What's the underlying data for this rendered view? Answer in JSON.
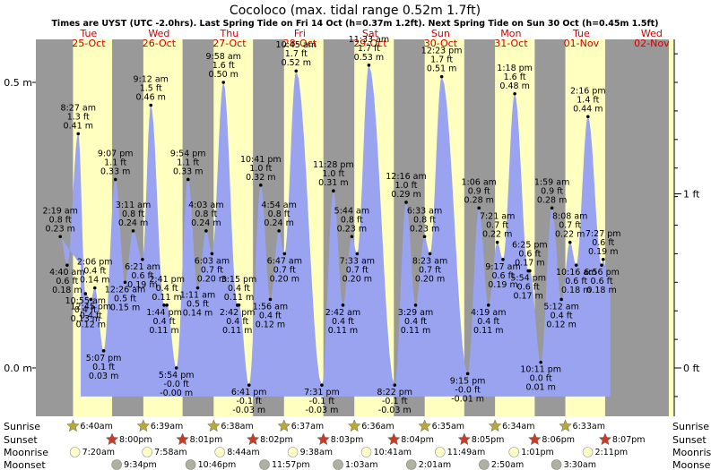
{
  "chart_data": {
    "type": "area",
    "title": "Cocoloco (max. tidal range 0.52m 1.7ft)",
    "subtitle": "Times are UYST (UTC -2.0hrs). Last Spring Tide on Fri 14 Oct (h=0.37m 1.2ft). Next Spring Tide on Sun 30 Oct (h=0.45m 1.5ft)",
    "days": [
      {
        "weekday": "Tue",
        "date": "25-Oct"
      },
      {
        "weekday": "Wed",
        "date": "26-Oct"
      },
      {
        "weekday": "Thu",
        "date": "27-Oct"
      },
      {
        "weekday": "Fri",
        "date": "28-Oct"
      },
      {
        "weekday": "Sat",
        "date": "29-Oct"
      },
      {
        "weekday": "Sun",
        "date": "30-Oct"
      },
      {
        "weekday": "Mon",
        "date": "31-Oct"
      },
      {
        "weekday": "Tue",
        "date": "01-Nov"
      },
      {
        "weekday": "Wed",
        "date": "02-Nov"
      }
    ],
    "y_left_ticks": [
      {
        "value": 0.0,
        "label": "0.0 m"
      },
      {
        "value": 0.5,
        "label": "0.5 m"
      }
    ],
    "y_right_ticks": [
      {
        "value": 0.0,
        "label": "0 ft"
      },
      {
        "value": 0.3048,
        "label": "1 ft"
      }
    ],
    "ylim_m": [
      -0.08,
      0.6
    ],
    "tides": [
      {
        "day": 0,
        "time": "2:19 am",
        "ft": "0.8 ft",
        "m": "0.23 m",
        "h": 0.23
      },
      {
        "day": 0,
        "time": "4:40 am",
        "ft": "0.6 ft",
        "m": "0.18 m",
        "h": 0.18
      },
      {
        "day": 0,
        "time": "8:27 am",
        "ft": "1.3 ft",
        "m": "0.41 m",
        "h": 0.41
      },
      {
        "day": 0,
        "time": "10:55 am",
        "ft": "0.4 ft",
        "m": "0.13 m",
        "h": 0.13
      },
      {
        "day": 0,
        "time": "12:45 pm",
        "ft": "0.4 ft",
        "m": "0.12 m",
        "h": 0.12
      },
      {
        "day": 0,
        "time": "2:06 pm",
        "ft": "0.4 ft",
        "m": "0.14 m",
        "h": 0.14
      },
      {
        "day": 0,
        "time": "5:07 pm",
        "ft": "0.1 ft",
        "m": "0.03 m",
        "h": 0.03
      },
      {
        "day": 0,
        "time": "9:07 pm",
        "ft": "1.1 ft",
        "m": "0.33 m",
        "h": 0.33
      },
      {
        "day": 1,
        "time": "12:26 am",
        "ft": "0.5 ft",
        "m": "0.15 m",
        "h": 0.15
      },
      {
        "day": 1,
        "time": "3:11 am",
        "ft": "0.8 ft",
        "m": "0.24 m",
        "h": 0.24
      },
      {
        "day": 1,
        "time": "6:21 am",
        "ft": "0.6 ft",
        "m": "0.19 m",
        "h": 0.19
      },
      {
        "day": 1,
        "time": "9:12 am",
        "ft": "1.5 ft",
        "m": "0.46 m",
        "h": 0.46
      },
      {
        "day": 1,
        "time": "1:44 pm",
        "ft": "0.4 ft",
        "m": "0.11 m",
        "h": 0.11
      },
      {
        "day": 1,
        "time": "2:41 pm",
        "ft": "0.4 ft",
        "m": "0.11 m",
        "h": 0.11
      },
      {
        "day": 1,
        "time": "5:54 pm",
        "ft": "-0.0 ft",
        "m": "-0.00 m",
        "h": -0.0
      },
      {
        "day": 1,
        "time": "9:54 pm",
        "ft": "1.1 ft",
        "m": "0.33 m",
        "h": 0.33
      },
      {
        "day": 2,
        "time": "1:11 am",
        "ft": "0.5 ft",
        "m": "0.14 m",
        "h": 0.14
      },
      {
        "day": 2,
        "time": "4:03 am",
        "ft": "0.8 ft",
        "m": "0.24 m",
        "h": 0.24
      },
      {
        "day": 2,
        "time": "6:03 am",
        "ft": "0.7 ft",
        "m": "0.20 m",
        "h": 0.2
      },
      {
        "day": 2,
        "time": "9:58 am",
        "ft": "1.6 ft",
        "m": "0.50 m",
        "h": 0.5
      },
      {
        "day": 2,
        "time": "2:42 pm",
        "ft": "0.4 ft",
        "m": "0.11 m",
        "h": 0.11
      },
      {
        "day": 2,
        "time": "3:15 pm",
        "ft": "0.4 ft",
        "m": "0.11 m",
        "h": 0.11
      },
      {
        "day": 2,
        "time": "6:41 pm",
        "ft": "-0.1 ft",
        "m": "-0.03 m",
        "h": -0.03
      },
      {
        "day": 2,
        "time": "10:41 pm",
        "ft": "1.0 ft",
        "m": "0.32 m",
        "h": 0.32
      },
      {
        "day": 3,
        "time": "1:56 am",
        "ft": "0.4 ft",
        "m": "0.12 m",
        "h": 0.12
      },
      {
        "day": 3,
        "time": "4:54 am",
        "ft": "0.8 ft",
        "m": "0.24 m",
        "h": 0.24
      },
      {
        "day": 3,
        "time": "6:47 am",
        "ft": "0.7 ft",
        "m": "0.20 m",
        "h": 0.2
      },
      {
        "day": 3,
        "time": "10:45 am",
        "ft": "1.7 ft",
        "m": "0.52 m",
        "h": 0.52
      },
      {
        "day": 3,
        "time": "7:31 pm",
        "ft": "-0.1 ft",
        "m": "-0.03 m",
        "h": -0.03
      },
      {
        "day": 3,
        "time": "11:28 pm",
        "ft": "1.0 ft",
        "m": "0.31 m",
        "h": 0.31
      },
      {
        "day": 4,
        "time": "2:42 am",
        "ft": "0.4 ft",
        "m": "0.11 m",
        "h": 0.11
      },
      {
        "day": 4,
        "time": "5:44 am",
        "ft": "0.8 ft",
        "m": "0.23 m",
        "h": 0.23
      },
      {
        "day": 4,
        "time": "7:33 am",
        "ft": "0.7 ft",
        "m": "0.20 m",
        "h": 0.2
      },
      {
        "day": 4,
        "time": "11:33 am",
        "ft": "1.7 ft",
        "m": "0.53 m",
        "h": 0.53
      },
      {
        "day": 4,
        "time": "8:22 pm",
        "ft": "-0.1 ft",
        "m": "-0.03 m",
        "h": -0.03
      },
      {
        "day": 5,
        "time": "12:16 am",
        "ft": "1.0 ft",
        "m": "0.29 m",
        "h": 0.29
      },
      {
        "day": 5,
        "time": "3:29 am",
        "ft": "0.4 ft",
        "m": "0.11 m",
        "h": 0.11
      },
      {
        "day": 5,
        "time": "6:33 am",
        "ft": "0.8 ft",
        "m": "0.23 m",
        "h": 0.23
      },
      {
        "day": 5,
        "time": "8:23 am",
        "ft": "0.7 ft",
        "m": "0.20 m",
        "h": 0.2
      },
      {
        "day": 5,
        "time": "12:23 pm",
        "ft": "1.7 ft",
        "m": "0.51 m",
        "h": 0.51
      },
      {
        "day": 5,
        "time": "9:15 pm",
        "ft": "-0.0 ft",
        "m": "-0.01 m",
        "h": -0.01
      },
      {
        "day": 6,
        "time": "1:06 am",
        "ft": "0.9 ft",
        "m": "0.28 m",
        "h": 0.28
      },
      {
        "day": 6,
        "time": "4:19 am",
        "ft": "0.4 ft",
        "m": "0.11 m",
        "h": 0.11
      },
      {
        "day": 6,
        "time": "7:21 am",
        "ft": "0.7 ft",
        "m": "0.22 m",
        "h": 0.22
      },
      {
        "day": 6,
        "time": "9:17 am",
        "ft": "0.6 ft",
        "m": "0.19 m",
        "h": 0.19
      },
      {
        "day": 6,
        "time": "1:18 pm",
        "ft": "1.6 ft",
        "m": "0.48 m",
        "h": 0.48
      },
      {
        "day": 6,
        "time": "5:54 pm",
        "ft": "0.6 ft",
        "m": "0.17 m",
        "h": 0.17
      },
      {
        "day": 6,
        "time": "6:25 pm",
        "ft": "0.6 ft",
        "m": "0.17 m",
        "h": 0.17
      },
      {
        "day": 6,
        "time": "10:11 pm",
        "ft": "0.0 ft",
        "m": "0.01 m",
        "h": 0.01
      },
      {
        "day": 7,
        "time": "1:59 am",
        "ft": "0.9 ft",
        "m": "0.28 m",
        "h": 0.28
      },
      {
        "day": 7,
        "time": "5:12 am",
        "ft": "0.4 ft",
        "m": "0.12 m",
        "h": 0.12
      },
      {
        "day": 7,
        "time": "8:08 am",
        "ft": "0.7 ft",
        "m": "0.22 m",
        "h": 0.22
      },
      {
        "day": 7,
        "time": "10:16 am",
        "ft": "0.6 ft",
        "m": "0.18 m",
        "h": 0.18
      },
      {
        "day": 7,
        "time": "2:16 pm",
        "ft": "1.4 ft",
        "m": "0.44 m",
        "h": 0.44
      },
      {
        "day": 7,
        "time": "6:56 pm",
        "ft": "0.6 ft",
        "m": "0.18 m",
        "h": 0.18
      },
      {
        "day": 7,
        "time": "7:27 pm",
        "ft": "0.6 ft",
        "m": "0.19 m",
        "h": 0.19
      }
    ],
    "astro": {
      "row_labels": [
        "Sunrise",
        "Sunset",
        "Moonrise",
        "Moonset"
      ],
      "sunrise": [
        "6:40am",
        "6:39am",
        "6:38am",
        "6:37am",
        "6:36am",
        "6:35am",
        "6:34am",
        "6:33am"
      ],
      "sunset": [
        "8:00pm",
        "8:01pm",
        "8:02pm",
        "8:03pm",
        "8:04pm",
        "8:05pm",
        "8:06pm",
        "8:07pm"
      ],
      "moonrise": [
        "7:20am",
        "7:58am",
        "8:44am",
        "9:38am",
        "10:41am",
        "11:49am",
        "1:01pm",
        "2:11pm"
      ],
      "moonset": [
        "9:34pm",
        "10:46pm",
        "11:57pm",
        "1:03am",
        "2:01am",
        "2:50am",
        "3:30am"
      ],
      "moonset_day": [
        0,
        1,
        2,
        4,
        5,
        6,
        7
      ]
    },
    "colors": {
      "night": "#999999",
      "day": "#ffffc0",
      "water": "#9aa3f0",
      "day_label": "#cc0000",
      "sun_star": "#b8a838",
      "sunset_star": "#cc3a22",
      "moonrise": "#ffffc8",
      "moonset": "#b0b0a0"
    },
    "grid": false
  }
}
